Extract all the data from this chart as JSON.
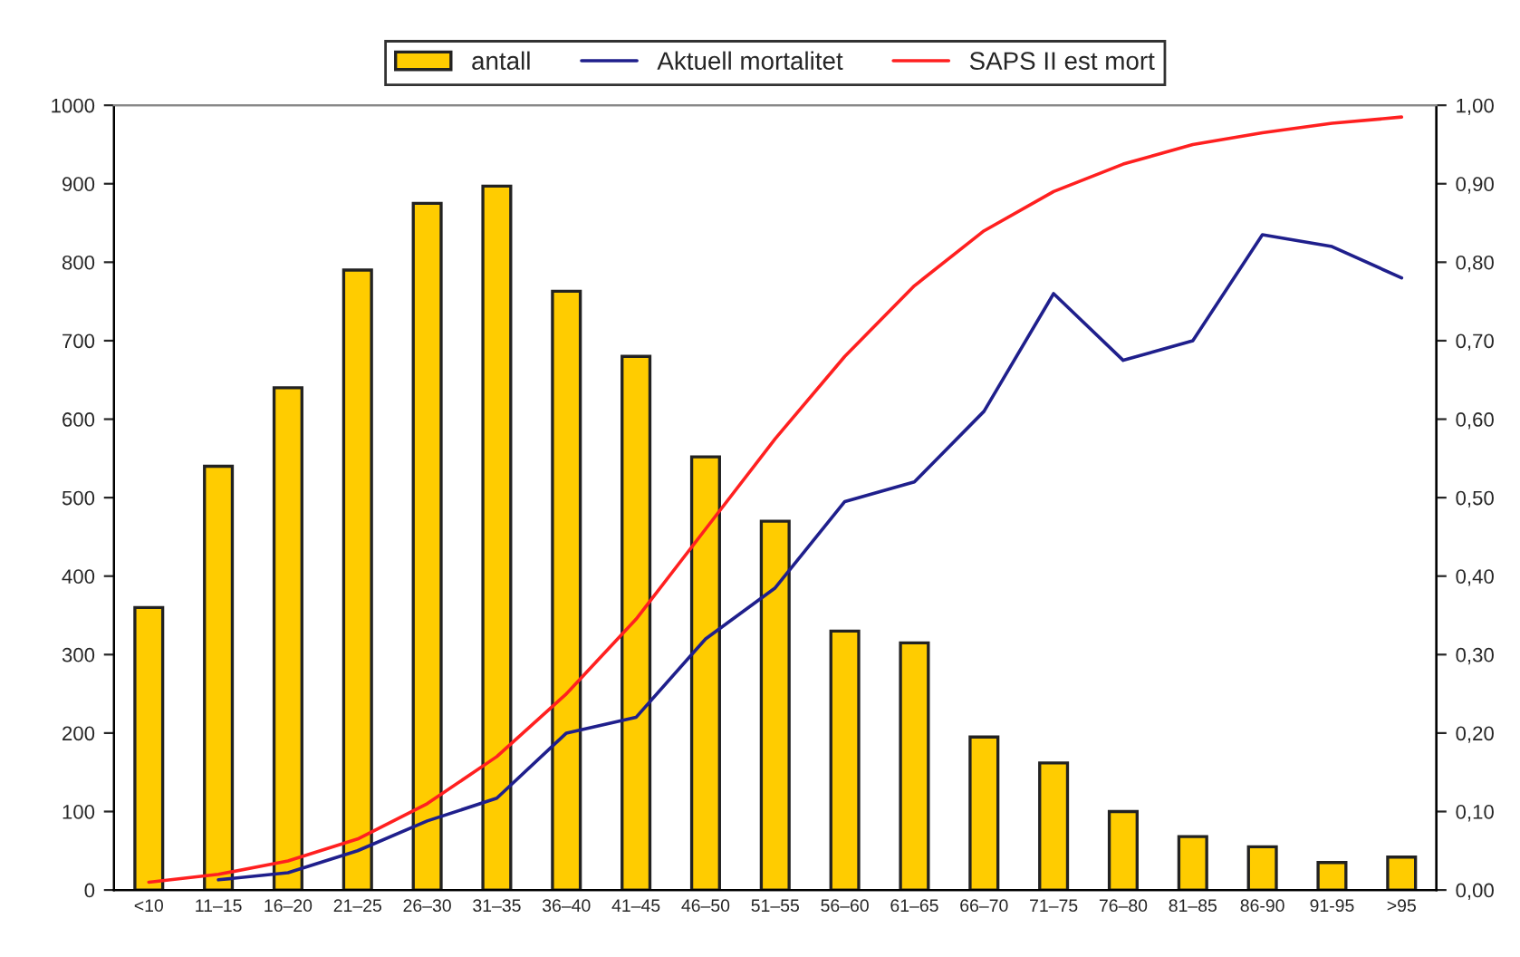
{
  "chart_data": {
    "type": "bar",
    "categories": [
      "<10",
      "11–15",
      "16–20",
      "21–25",
      "26–30",
      "31–35",
      "36–40",
      "41–45",
      "46–50",
      "51–55",
      "56–60",
      "61–65",
      "66–70",
      "71–75",
      "76–80",
      "81–85",
      "86-90",
      "91-95",
      ">95"
    ],
    "series": [
      {
        "name": "antall",
        "color": "#ffcc00",
        "values": [
          360,
          540,
          640,
          790,
          875,
          897,
          763,
          680,
          552,
          470,
          330,
          315,
          195,
          162,
          100,
          68,
          55,
          35,
          42
        ]
      },
      {
        "name": "Aktuell mortalitet",
        "type": "line",
        "axis": "y2",
        "color": "#1f1f8c",
        "values": [
          null,
          0.013,
          0.022,
          0.05,
          0.088,
          0.117,
          0.2,
          0.22,
          0.32,
          0.385,
          0.495,
          0.52,
          0.61,
          0.76,
          0.675,
          0.7,
          0.835,
          0.82,
          0.78
        ]
      },
      {
        "name": "SAPS II est mort",
        "type": "line",
        "axis": "y2",
        "color": "#ff2020",
        "values": [
          0.01,
          0.02,
          0.037,
          0.065,
          0.11,
          0.17,
          0.25,
          0.345,
          0.46,
          0.575,
          0.68,
          0.77,
          0.84,
          0.89,
          0.925,
          0.95,
          0.965,
          0.977,
          0.985
        ]
      }
    ],
    "ylim": [
      0,
      1000
    ],
    "yticks": [
      0,
      100,
      200,
      300,
      400,
      500,
      600,
      700,
      800,
      900,
      1000
    ],
    "y2lim": [
      0,
      1
    ],
    "y2ticks": [
      {
        "value": 0,
        "label": "0,00"
      },
      {
        "value": 0.1,
        "label": "0,10"
      },
      {
        "value": 0.2,
        "label": "0,20"
      },
      {
        "value": 0.3,
        "label": "0,30"
      },
      {
        "value": 0.4,
        "label": "0,40"
      },
      {
        "value": 0.5,
        "label": "0,50"
      },
      {
        "value": 0.6,
        "label": "0,60"
      },
      {
        "value": 0.7,
        "label": "0,70"
      },
      {
        "value": 0.8,
        "label": "0,80"
      },
      {
        "value": 0.9,
        "label": "0,90"
      },
      {
        "value": 1,
        "label": "1,00"
      }
    ],
    "legend": "top",
    "grid": false
  }
}
